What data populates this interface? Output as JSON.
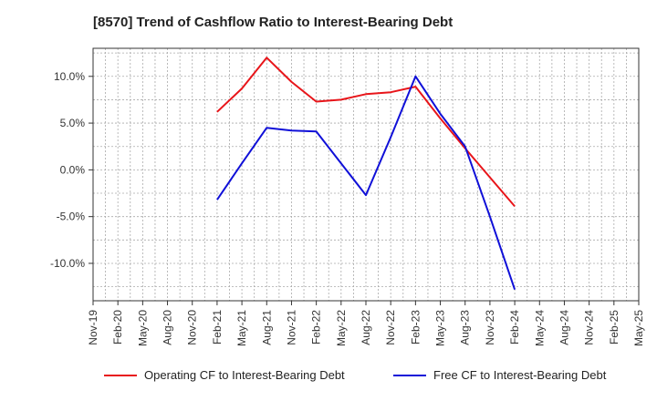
{
  "chart_data": {
    "type": "line",
    "title": "[8570]  Trend of Cashflow Ratio to Interest-Bearing Debt",
    "xlabel": "",
    "ylabel": "",
    "categories": [
      "Nov-19",
      "Feb-20",
      "May-20",
      "Aug-20",
      "Nov-20",
      "Feb-21",
      "May-21",
      "Aug-21",
      "Nov-21",
      "Feb-22",
      "May-22",
      "Aug-22",
      "Nov-22",
      "Feb-23",
      "May-23",
      "Aug-23",
      "Nov-23",
      "Feb-24",
      "May-24",
      "Aug-24",
      "Nov-24",
      "Feb-25",
      "May-25"
    ],
    "ylim": [
      -14,
      13
    ],
    "yticks": [
      10,
      5,
      0,
      -5,
      -10
    ],
    "ytick_labels": [
      "10.0%",
      "5.0%",
      "0.0%",
      "-5.0%",
      "-10.0%"
    ],
    "grid": true,
    "legend_position": "bottom",
    "series": [
      {
        "name": "Operating CF to Interest-Bearing Debt",
        "color": "#e8151a",
        "values": [
          null,
          null,
          null,
          null,
          null,
          6.2,
          8.7,
          12.0,
          9.4,
          7.3,
          7.5,
          8.1,
          8.3,
          8.9,
          5.5,
          2.3,
          -0.8,
          -3.9,
          null,
          null,
          null,
          null,
          null
        ]
      },
      {
        "name": "Free CF to Interest-Bearing Debt",
        "color": "#1010d8",
        "values": [
          null,
          null,
          null,
          null,
          null,
          -3.2,
          0.7,
          4.5,
          4.2,
          4.1,
          0.7,
          -2.7,
          3.5,
          10.0,
          6.0,
          2.5,
          -5.0,
          -12.8,
          null,
          null,
          null,
          null,
          null
        ]
      }
    ]
  }
}
